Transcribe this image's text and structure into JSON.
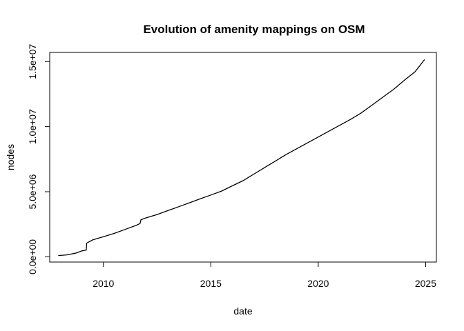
{
  "chart_data": {
    "type": "line",
    "title": "Evolution of amenity mappings on OSM",
    "xlabel": "date",
    "ylabel": "nodes",
    "xlim": [
      2007.5,
      2025.5
    ],
    "ylim": [
      -400000,
      15700000
    ],
    "x_ticks": [
      2010,
      2015,
      2020,
      2025
    ],
    "x_tick_labels": [
      "2010",
      "2015",
      "2020",
      "2025"
    ],
    "y_ticks": [
      0,
      5000000,
      10000000,
      15000000
    ],
    "y_tick_labels": [
      "0.0e+00",
      "5.0e+06",
      "1.0e+07",
      "1.5e+07"
    ],
    "grid": false,
    "legend": "none",
    "line_color": "#000000",
    "series": [
      {
        "x": [
          2007.9,
          2008.3,
          2008.7,
          2009.0,
          2009.2,
          2009.22,
          2009.5,
          2010.0,
          2010.5,
          2011.0,
          2011.5,
          2011.7,
          2011.75,
          2012.0,
          2012.5,
          2013.0,
          2013.5,
          2014.0,
          2014.5,
          2015.0,
          2015.5,
          2016.0,
          2016.5,
          2017.0,
          2017.5,
          2018.0,
          2018.5,
          2019.0,
          2019.5,
          2020.0,
          2020.5,
          2021.0,
          2021.5,
          2022.0,
          2022.5,
          2023.0,
          2023.5,
          2024.0,
          2024.5,
          2024.95
        ],
        "y": [
          100000,
          150000,
          280000,
          460000,
          520000,
          1050000,
          1300000,
          1550000,
          1800000,
          2100000,
          2400000,
          2550000,
          2850000,
          3000000,
          3250000,
          3550000,
          3850000,
          4150000,
          4450000,
          4750000,
          5050000,
          5450000,
          5850000,
          6350000,
          6850000,
          7350000,
          7850000,
          8300000,
          8750000,
          9200000,
          9650000,
          10100000,
          10550000,
          11050000,
          11650000,
          12250000,
          12850000,
          13550000,
          14200000,
          15150000
        ]
      }
    ]
  }
}
